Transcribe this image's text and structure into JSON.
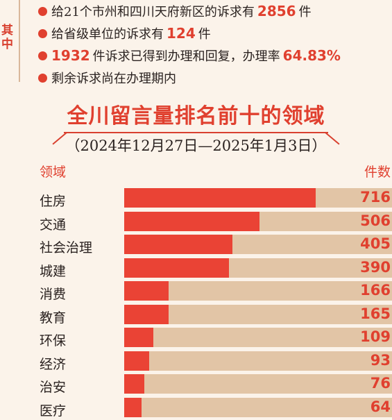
{
  "side_label": "其中",
  "notes": [
    {
      "before": "给21个市州和四川天府新区的诉求有",
      "num": "2856",
      "after": "件"
    },
    {
      "before": "给省级单位的诉求有",
      "num": "124",
      "after": "件"
    },
    {
      "before": "",
      "num": "1932",
      "after": "件诉求已得到办理和回复，办理率",
      "num2": "64.83%"
    },
    {
      "before": "剩余诉求尚在办理期内",
      "num": "",
      "after": ""
    }
  ],
  "chart_data": {
    "type": "bar",
    "title": "全川留言量排名前十的领域",
    "subtitle": "（2024年12月27日—2025年1月3日）",
    "xlabel": "领域",
    "ylabel": "件数",
    "categories": [
      "住房",
      "交通",
      "社会治理",
      "城建",
      "消费",
      "教育",
      "环保",
      "经济",
      "治安",
      "医疗"
    ],
    "values": [
      716,
      506,
      405,
      390,
      166,
      165,
      109,
      93,
      76,
      64
    ],
    "xlim": [
      0,
      1000
    ],
    "colors": {
      "bar": "#ea4335",
      "track": "#e2c5a6",
      "accent": "#e0402f"
    }
  }
}
